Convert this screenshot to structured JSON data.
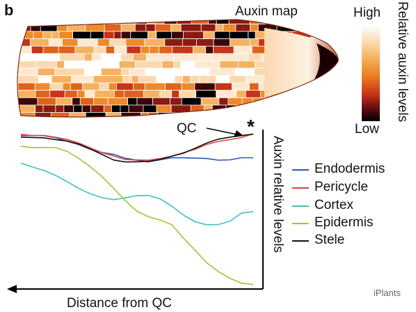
{
  "figure": {
    "panel_letter": "b",
    "map_title": "Auxin map",
    "colorbar": {
      "high": "High",
      "low": "Low",
      "label": "Relative auxin levels"
    },
    "qc_label": "QC",
    "star": "*",
    "watermark": "iPlants"
  },
  "chart_data": {
    "type": "line",
    "xlabel": "Distance from QC",
    "ylabel": "Auxin relative levels",
    "x_direction": "decreasing to the left (QC at right)",
    "x": [
      1.0,
      0.95,
      0.9,
      0.85,
      0.8,
      0.75,
      0.7,
      0.65,
      0.6,
      0.55,
      0.5,
      0.45,
      0.4,
      0.35,
      0.3,
      0.25,
      0.2,
      0.15,
      0.1,
      0.05,
      0.0
    ],
    "ylim": [
      0,
      1
    ],
    "grid": false,
    "legend_position": "right",
    "series": [
      {
        "name": "Endodermis",
        "color": "#2b57b5",
        "values": [
          0.89,
          0.89,
          0.89,
          0.88,
          0.86,
          0.84,
          0.81,
          0.79,
          0.78,
          0.76,
          0.75,
          0.74,
          0.75,
          0.76,
          0.76,
          0.76,
          0.76,
          0.75,
          0.75,
          0.76,
          0.76
        ]
      },
      {
        "name": "Pericycle",
        "color": "#e04040",
        "values": [
          0.9,
          0.89,
          0.89,
          0.88,
          0.87,
          0.85,
          0.82,
          0.79,
          0.77,
          0.75,
          0.75,
          0.75,
          0.76,
          0.77,
          0.79,
          0.81,
          0.84,
          0.86,
          0.87,
          0.88,
          0.9
        ]
      },
      {
        "name": "Cortex",
        "color": "#3fbfbf",
        "values": [
          0.73,
          0.71,
          0.69,
          0.66,
          0.62,
          0.58,
          0.55,
          0.53,
          0.52,
          0.53,
          0.54,
          0.54,
          0.52,
          0.48,
          0.43,
          0.39,
          0.37,
          0.37,
          0.39,
          0.44,
          0.45
        ]
      },
      {
        "name": "Epidermis",
        "color": "#a5c13a",
        "values": [
          0.83,
          0.82,
          0.82,
          0.82,
          0.8,
          0.76,
          0.71,
          0.65,
          0.58,
          0.51,
          0.45,
          0.42,
          0.4,
          0.37,
          0.29,
          0.22,
          0.15,
          0.1,
          0.06,
          0.03,
          0.02
        ]
      },
      {
        "name": "Stele",
        "color": "#111111",
        "values": [
          0.88,
          0.88,
          0.88,
          0.87,
          0.86,
          0.84,
          0.81,
          0.78,
          0.75,
          0.74,
          0.74,
          0.74,
          0.75,
          0.77,
          0.79,
          0.82,
          0.85,
          0.87,
          0.88,
          0.89,
          0.9
        ]
      }
    ]
  }
}
